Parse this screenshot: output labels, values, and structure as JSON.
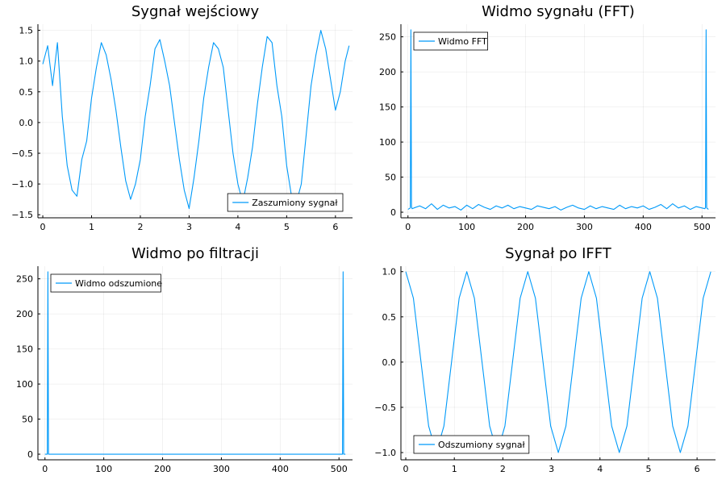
{
  "figure": {
    "accent_color": "#009af9"
  },
  "chart_data": [
    {
      "type": "line",
      "title": "Sygnał wejściowy",
      "xlabel": "",
      "ylabel": "",
      "xlim": [
        -0.1,
        6.35
      ],
      "ylim": [
        -1.55,
        1.6
      ],
      "xticks": [
        0,
        1,
        2,
        3,
        4,
        5,
        6
      ],
      "xtick_labels": [
        "0",
        "1",
        "2",
        "3",
        "4",
        "5",
        "6"
      ],
      "yticks": [
        -1.5,
        -1.0,
        -0.5,
        0.0,
        0.5,
        1.0,
        1.5
      ],
      "ytick_labels": [
        "−1.5",
        "−1.0",
        "−0.5",
        "0.0",
        "0.5",
        "1.0",
        "1.5"
      ],
      "grid": true,
      "legend_position": "bottom-right",
      "series": [
        {
          "name": "Zaszumiony sygnał",
          "color": "#009af9",
          "x": [
            0.0,
            0.1,
            0.2,
            0.3,
            0.4,
            0.5,
            0.6,
            0.7,
            0.8,
            0.9,
            1.0,
            1.1,
            1.2,
            1.3,
            1.4,
            1.5,
            1.6,
            1.7,
            1.8,
            1.9,
            2.0,
            2.1,
            2.2,
            2.3,
            2.4,
            2.5,
            2.6,
            2.7,
            2.8,
            2.9,
            3.0,
            3.1,
            3.2,
            3.3,
            3.4,
            3.5,
            3.6,
            3.7,
            3.8,
            3.9,
            4.0,
            4.1,
            4.2,
            4.3,
            4.4,
            4.5,
            4.6,
            4.7,
            4.8,
            4.9,
            5.0,
            5.1,
            5.2,
            5.3,
            5.4,
            5.5,
            5.6,
            5.7,
            5.8,
            5.9,
            6.0,
            6.1,
            6.2,
            6.28
          ],
          "y": [
            0.95,
            1.25,
            0.6,
            1.3,
            0.1,
            -0.7,
            -1.1,
            -1.2,
            -0.6,
            -0.3,
            0.4,
            0.9,
            1.3,
            1.1,
            0.7,
            0.2,
            -0.4,
            -0.95,
            -1.25,
            -1.0,
            -0.6,
            0.1,
            0.6,
            1.2,
            1.35,
            1.0,
            0.6,
            0.0,
            -0.6,
            -1.1,
            -1.4,
            -0.9,
            -0.3,
            0.4,
            0.9,
            1.3,
            1.2,
            0.9,
            0.2,
            -0.5,
            -1.0,
            -1.3,
            -0.9,
            -0.4,
            0.3,
            0.9,
            1.4,
            1.3,
            0.6,
            0.1,
            -0.7,
            -1.2,
            -1.3,
            -1.0,
            -0.2,
            0.6,
            1.1,
            1.5,
            1.2,
            0.7,
            0.2,
            0.5,
            1.0,
            1.25
          ]
        }
      ]
    },
    {
      "type": "line",
      "title": "Widmo sygnału (FFT)",
      "xlabel": "",
      "ylabel": "",
      "xlim": [
        -12,
        523
      ],
      "ylim": [
        -8,
        268
      ],
      "xticks": [
        0,
        100,
        200,
        300,
        400,
        500
      ],
      "xtick_labels": [
        "0",
        "100",
        "200",
        "300",
        "400",
        "500"
      ],
      "yticks": [
        0,
        50,
        100,
        150,
        200,
        250
      ],
      "ytick_labels": [
        "0",
        "50",
        "100",
        "150",
        "200",
        "250"
      ],
      "grid": true,
      "legend_position": "top-left",
      "series": [
        {
          "name": "Widmo FFT",
          "color": "#009af9",
          "x": [
            0,
            4,
            5,
            6,
            7,
            10,
            20,
            30,
            40,
            50,
            60,
            70,
            80,
            90,
            100,
            110,
            120,
            130,
            140,
            150,
            160,
            170,
            180,
            190,
            200,
            210,
            220,
            230,
            240,
            250,
            260,
            270,
            280,
            290,
            300,
            310,
            320,
            330,
            340,
            350,
            360,
            370,
            380,
            390,
            400,
            410,
            420,
            430,
            440,
            450,
            460,
            470,
            480,
            490,
            500,
            505,
            506,
            507,
            508,
            511
          ],
          "y": [
            4,
            6,
            260,
            8,
            5,
            6,
            9,
            5,
            12,
            4,
            10,
            6,
            8,
            3,
            10,
            5,
            11,
            7,
            4,
            9,
            6,
            10,
            5,
            8,
            6,
            4,
            9,
            7,
            5,
            8,
            3,
            7,
            10,
            6,
            4,
            9,
            5,
            8,
            6,
            4,
            10,
            5,
            8,
            6,
            9,
            4,
            7,
            11,
            5,
            12,
            6,
            9,
            4,
            8,
            6,
            5,
            7,
            260,
            6,
            4
          ]
        }
      ]
    },
    {
      "type": "line",
      "title": "Widmo po filtracji",
      "xlabel": "",
      "ylabel": "",
      "xlim": [
        -12,
        523
      ],
      "ylim": [
        -8,
        268
      ],
      "xticks": [
        0,
        100,
        200,
        300,
        400,
        500
      ],
      "xtick_labels": [
        "0",
        "100",
        "200",
        "300",
        "400",
        "500"
      ],
      "yticks": [
        0,
        50,
        100,
        150,
        200,
        250
      ],
      "ytick_labels": [
        "0",
        "50",
        "100",
        "150",
        "200",
        "250"
      ],
      "grid": true,
      "legend_position": "top-left",
      "series": [
        {
          "name": "Widmo odszumione",
          "color": "#009af9",
          "x": [
            0,
            4,
            5,
            6,
            506,
            507,
            508,
            511
          ],
          "y": [
            0,
            0,
            260,
            0,
            0,
            260,
            0,
            0
          ]
        }
      ]
    },
    {
      "type": "line",
      "title": "Sygnał po IFFT",
      "xlabel": "",
      "ylabel": "",
      "xlim": [
        -0.1,
        6.38
      ],
      "ylim": [
        -1.08,
        1.06
      ],
      "xticks": [
        0,
        1,
        2,
        3,
        4,
        5,
        6
      ],
      "xtick_labels": [
        "0",
        "1",
        "2",
        "3",
        "4",
        "5",
        "6"
      ],
      "yticks": [
        -1.0,
        -0.5,
        0.0,
        0.5,
        1.0
      ],
      "ytick_labels": [
        "−1.0",
        "−0.5",
        "0.0",
        "0.5",
        "1.0"
      ],
      "grid": true,
      "legend_position": "bottom-left",
      "series": [
        {
          "name": "Odszumiony sygnał",
          "color": "#009af9",
          "x": [
            0.0,
            0.1571,
            0.3142,
            0.4712,
            0.6283,
            0.7854,
            0.9425,
            1.0996,
            1.2566,
            1.4137,
            1.5708,
            1.7279,
            1.885,
            2.042,
            2.1991,
            2.3562,
            2.5133,
            2.6704,
            2.8274,
            2.9845,
            3.1416,
            3.2987,
            3.4558,
            3.6128,
            3.7699,
            3.927,
            4.0841,
            4.2412,
            4.3982,
            4.5553,
            4.7124,
            4.8695,
            5.0265,
            5.1836,
            5.3407,
            5.4978,
            5.6549,
            5.8119,
            5.969,
            6.1261,
            6.2832
          ],
          "y": [
            1.0,
            0.707,
            0.0,
            -0.707,
            -1.0,
            -0.707,
            0.0,
            0.707,
            1.0,
            0.707,
            0.0,
            -0.707,
            -1.0,
            -0.707,
            0.0,
            0.707,
            1.0,
            0.707,
            0.0,
            -0.707,
            -1.0,
            -0.707,
            0.0,
            0.707,
            1.0,
            0.707,
            0.0,
            -0.707,
            -1.0,
            -0.707,
            0.0,
            0.707,
            1.0,
            0.707,
            0.0,
            -0.707,
            -1.0,
            -0.707,
            0.0,
            0.707,
            1.0
          ]
        }
      ]
    }
  ]
}
